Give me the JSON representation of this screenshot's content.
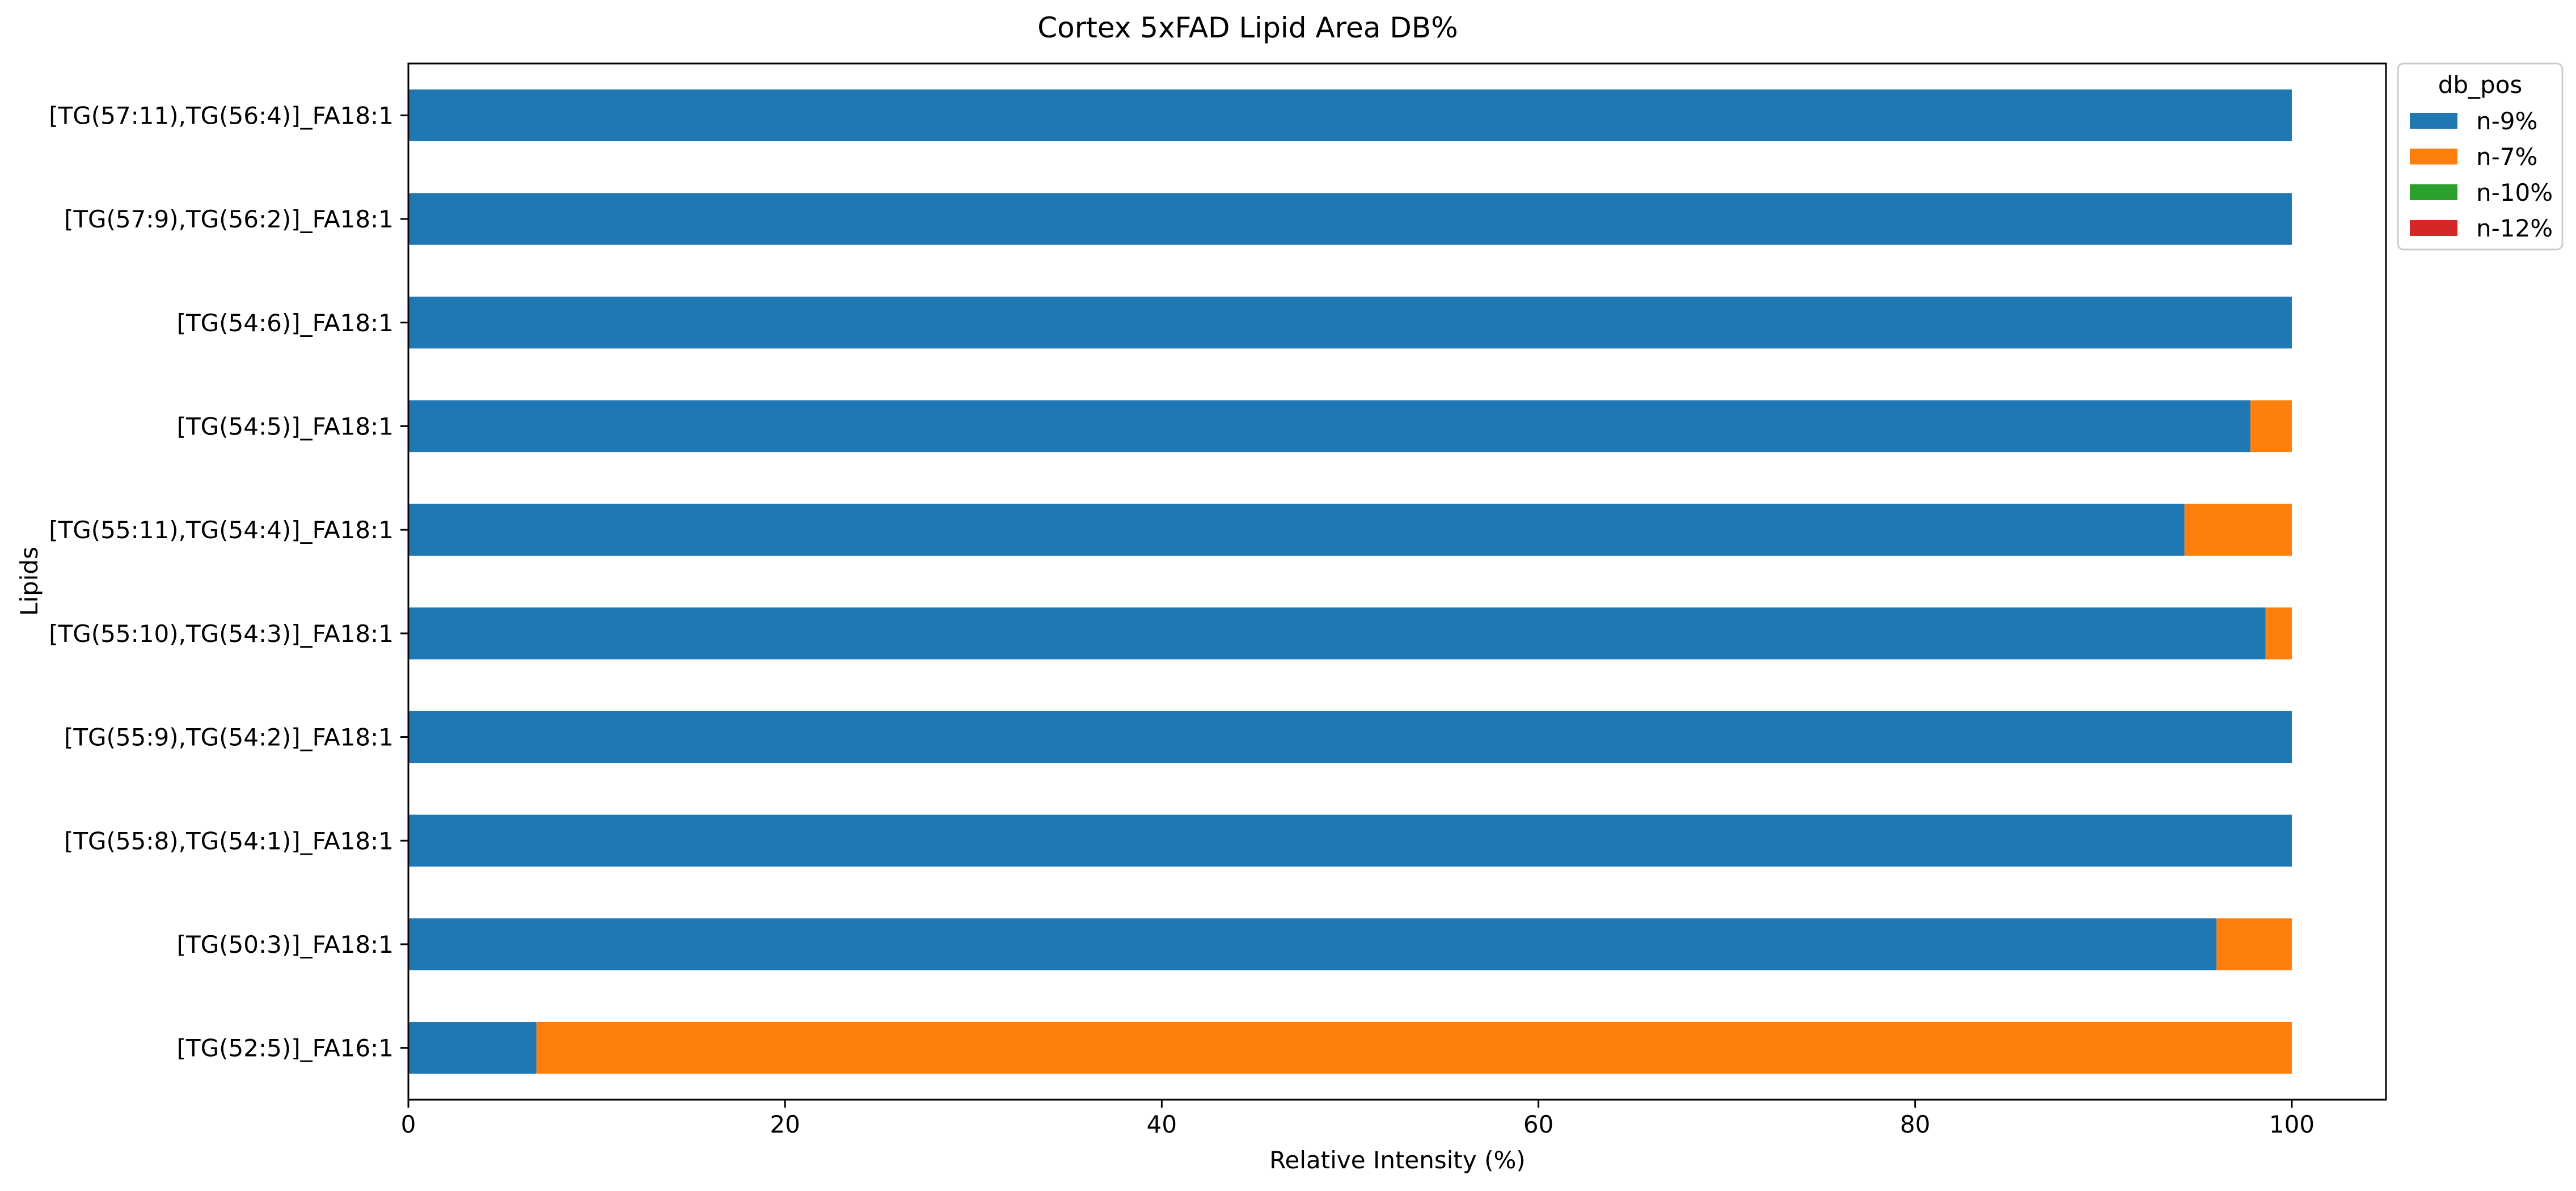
{
  "chart_data": {
    "type": "bar",
    "orientation": "horizontal",
    "stacked": true,
    "title": "Cortex 5xFAD Lipid Area DB%",
    "xlabel": "Relative Intensity (%)",
    "ylabel": "Lipids",
    "xlim": [
      0,
      105
    ],
    "xticks": [
      0,
      20,
      40,
      60,
      80,
      100
    ],
    "grid": false,
    "legend": {
      "title": "db_pos",
      "position": "outside-top-right"
    },
    "categories": [
      "[TG(57:11),TG(56:4)]_FA18:1",
      "[TG(57:9),TG(56:2)]_FA18:1",
      "[TG(54:6)]_FA18:1",
      "[TG(54:5)]_FA18:1",
      "[TG(55:11),TG(54:4)]_FA18:1",
      "[TG(55:10),TG(54:3)]_FA18:1",
      "[TG(55:9),TG(54:2)]_FA18:1",
      "[TG(55:8),TG(54:1)]_FA18:1",
      "[TG(50:3)]_FA18:1",
      "[TG(52:5)]_FA16:1"
    ],
    "series": [
      {
        "name": "n-9%",
        "color": "#1f77b4",
        "values": [
          100,
          100,
          100,
          97.8,
          94.3,
          98.6,
          100,
          100,
          96.0,
          6.8
        ]
      },
      {
        "name": "n-7%",
        "color": "#ff7f0e",
        "values": [
          0,
          0,
          0,
          2.2,
          5.7,
          1.4,
          0,
          0,
          4.0,
          93.2
        ]
      },
      {
        "name": "n-10%",
        "color": "#2ca02c",
        "values": [
          0,
          0,
          0,
          0,
          0,
          0,
          0,
          0,
          0,
          0
        ]
      },
      {
        "name": "n-12%",
        "color": "#d62728",
        "values": [
          0,
          0,
          0,
          0,
          0,
          0,
          0,
          0,
          0,
          0
        ]
      }
    ]
  }
}
